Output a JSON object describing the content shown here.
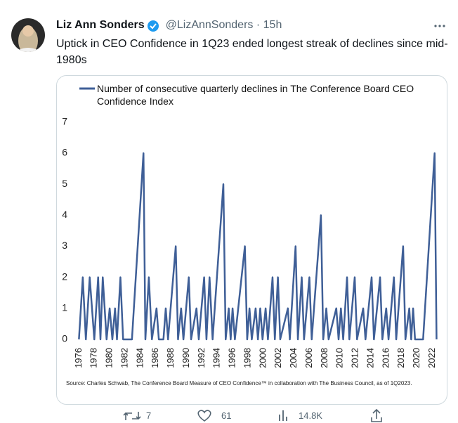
{
  "tweet": {
    "author": "Liz Ann Sonders",
    "handle": "@LizAnnSonders",
    "separator": "·",
    "time": "15h",
    "text": "Uptick in CEO Confidence in 1Q23 ended longest streak of declines since mid-1980s",
    "retweets": 7,
    "likes": 61,
    "views": "14.8K"
  },
  "chart_data": {
    "type": "line",
    "source": "Source: Charles Schwab, The Conference Board Measure of CEO Confidence™ in collaboration with The Business Council, as of 1Q2023.",
    "x": [
      1976,
      1976.5,
      1976.9,
      1977.4,
      1978,
      1978.5,
      1978.8,
      1979.1,
      1979.6,
      1980,
      1980.35,
      1980.7,
      1980.95,
      1981.4,
      1981.75,
      1982.9,
      1984.4,
      1984.65,
      1985.1,
      1985.5,
      1986.1,
      1986.4,
      1987,
      1987.3,
      1987.6,
      1988.6,
      1988.9,
      1989.3,
      1989.6,
      1990.3,
      1990.6,
      1991.3,
      1991.6,
      1992.3,
      1992.6,
      1993,
      1993.4,
      1994.8,
      1995.1,
      1995.5,
      1995.75,
      1996,
      1996.3,
      1997.6,
      1997.9,
      1998.2,
      1998.5,
      1999,
      1999.3,
      1999.6,
      1999.9,
      2000.3,
      2000.6,
      2001.2,
      2001.5,
      2001.9,
      2002.2,
      2003.2,
      2003.45,
      2004.2,
      2004.5,
      2005,
      2005.3,
      2006,
      2006.3,
      2007.5,
      2007.8,
      2008.2,
      2008.5,
      2009.5,
      2009.8,
      2010.1,
      2010.4,
      2010.9,
      2011.2,
      2011.9,
      2012.2,
      2013,
      2013.3,
      2014.1,
      2014.4,
      2015.2,
      2015.5,
      2016,
      2016.3,
      2017,
      2017.3,
      2018.2,
      2018.5,
      2019,
      2019.25,
      2019.5,
      2019.75,
      2020.8,
      2022.3,
      2022.55
    ],
    "series": [
      {
        "name": "Number of consecutive quarterly declines in The Conference Board CEO Confidence Index",
        "color": "#3f5f97",
        "values": [
          0,
          2,
          0,
          2,
          0,
          2,
          0,
          2,
          0,
          1,
          0,
          1,
          0,
          2,
          0,
          0,
          6,
          0,
          2,
          0,
          1,
          0,
          0,
          1,
          0,
          3,
          0,
          1,
          0,
          2,
          0,
          1,
          0,
          2,
          0,
          2,
          0,
          5,
          0,
          1,
          0,
          1,
          0,
          3,
          0,
          1,
          0,
          1,
          0,
          1,
          0,
          1,
          0,
          2,
          0,
          2,
          0,
          1,
          0,
          3,
          0,
          2,
          0,
          2,
          0,
          4,
          0,
          1,
          0,
          1,
          0,
          1,
          0,
          2,
          0,
          2,
          0,
          1,
          0,
          2,
          0,
          2,
          0,
          1,
          0,
          2,
          0,
          3,
          0,
          1,
          0,
          1,
          0,
          0,
          6,
          0
        ]
      }
    ],
    "xlim": [
      1975.6,
      2022.6
    ],
    "xticks": [
      1976,
      1978,
      1980,
      1982,
      1984,
      1986,
      1988,
      1990,
      1992,
      1994,
      1996,
      1998,
      2000,
      2002,
      2004,
      2006,
      2008,
      2010,
      2012,
      2014,
      2016,
      2018,
      2020,
      2022
    ],
    "ylim": [
      0,
      7.2
    ],
    "yticks": [
      0,
      1,
      2,
      3,
      4,
      5,
      6,
      7
    ],
    "grid": false
  }
}
